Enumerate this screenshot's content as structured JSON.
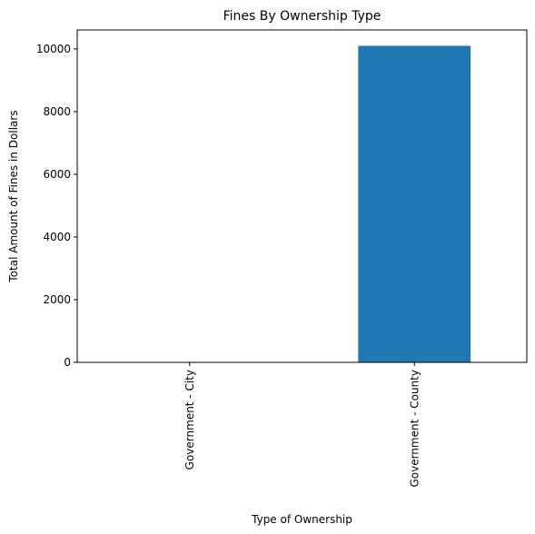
{
  "chart_data": {
    "type": "bar",
    "title": "Fines By Ownership Type",
    "xlabel": "Type of Ownership",
    "ylabel": "Total Amount of Fines in Dollars",
    "categories": [
      "Government - City",
      "Government - County"
    ],
    "values": [
      0,
      10100
    ],
    "ylim": [
      0,
      10605
    ],
    "yticks": [
      0,
      2000,
      4000,
      6000,
      8000,
      10000
    ],
    "bar_color": "#1f77b4",
    "grid": false,
    "legend": false
  }
}
